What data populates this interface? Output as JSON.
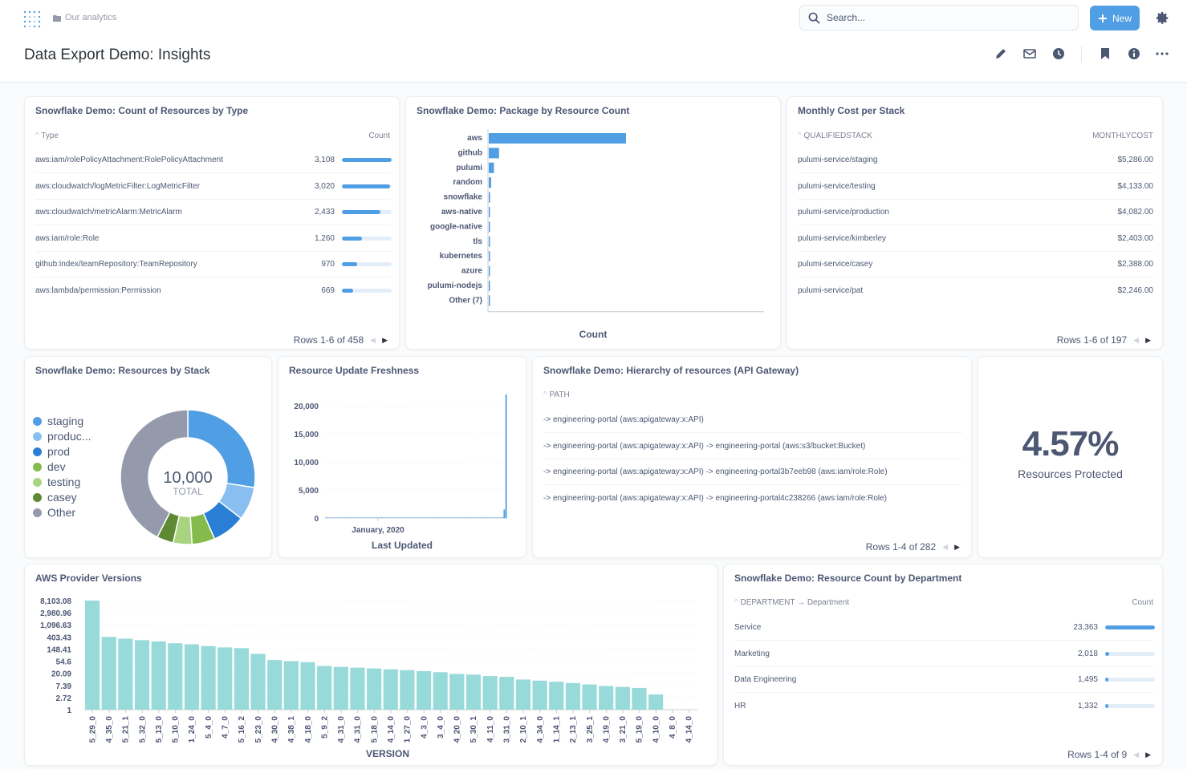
{
  "header": {
    "breadcrumb": "Our analytics",
    "title": "Data Export Demo: Insights",
    "search_placeholder": "Search...",
    "new_label": "New"
  },
  "colors": {
    "accent": "#509ee3",
    "teal": "#98d9d9",
    "gray": "#949aab"
  },
  "cards": {
    "resources_by_type": {
      "title": "Snowflake Demo: Count of Resources by Type",
      "col_type": "Type",
      "col_count": "Count",
      "rows": [
        {
          "label": "aws:iam/rolePolicyAttachment:RolePolicyAttachment",
          "value": "3,108",
          "fraction": 1.0
        },
        {
          "label": "aws:cloudwatch/logMetricFilter:LogMetricFilter",
          "value": "3,020",
          "fraction": 0.97
        },
        {
          "label": "aws:cloudwatch/metricAlarm:MetricAlarm",
          "value": "2,433",
          "fraction": 0.78
        },
        {
          "label": "aws:iam/role:Role",
          "value": "1,260",
          "fraction": 0.41
        },
        {
          "label": "github:index/teamRepository:TeamRepository",
          "value": "970",
          "fraction": 0.31
        },
        {
          "label": "aws:lambda/permission:Permission",
          "value": "669",
          "fraction": 0.22
        }
      ],
      "pager": "Rows 1-6 of 458"
    },
    "package_by_count": {
      "title": "Snowflake Demo: Package by Resource Count",
      "xlabel": "Count"
    },
    "monthly_cost": {
      "title": "Monthly Cost per Stack",
      "col_stack": "QUALIFIEDSTACK",
      "col_cost": "MONTHLYCOST",
      "rows": [
        {
          "label": "pulumi-service/staging",
          "value": "$5,286.00"
        },
        {
          "label": "pulumi-service/testing",
          "value": "$4,133.00"
        },
        {
          "label": "pulumi-service/production",
          "value": "$4,082.00"
        },
        {
          "label": "pulumi-service/kimberley",
          "value": "$2,403.00"
        },
        {
          "label": "pulumi-service/casey",
          "value": "$2,388.00"
        },
        {
          "label": "pulumi-service/pat",
          "value": "$2,246.00"
        }
      ],
      "pager": "Rows 1-6 of 197"
    },
    "resources_by_stack": {
      "title": "Snowflake Demo: Resources by Stack",
      "legend": [
        {
          "label": "staging",
          "color": "#509ee3"
        },
        {
          "label": "produc...",
          "color": "#88bff0"
        },
        {
          "label": "prod",
          "color": "#2a7fd4"
        },
        {
          "label": "dev",
          "color": "#84bb4c"
        },
        {
          "label": "testing",
          "color": "#a8d480"
        },
        {
          "label": "casey",
          "color": "#5f8a33"
        },
        {
          "label": "Other",
          "color": "#949aab"
        }
      ],
      "total": "10,000",
      "total_label": "TOTAL"
    },
    "freshness": {
      "title": "Resource Update Freshness",
      "xlabel": "Last Updated",
      "x_tick": "January, 2020"
    },
    "hierarchy": {
      "title": "Snowflake Demo: Hierarchy of resources (API Gateway)",
      "col_path": "PATH",
      "rows": [
        "-> engineering-portal (aws:apigateway:x:API)",
        "-> engineering-portal (aws:apigateway:x:API) -> engineering-portal (aws:s3/bucket:Bucket)",
        "-> engineering-portal (aws:apigateway:x:API) -> engineering-portal3b7eeb98 (aws:iam/role:Role)",
        "-> engineering-portal (aws:apigateway:x:API) -> engineering-portal4c238266 (aws:iam/role:Role)"
      ],
      "pager": "Rows 1-4 of 282"
    },
    "protected": {
      "value": "4.57%",
      "label": "Resources Protected"
    },
    "aws_versions": {
      "title": "AWS Provider Versions",
      "xlabel": "VERSION"
    },
    "department": {
      "title": "Snowflake Demo: Resource Count by Department",
      "col_dept": "DEPARTMENT → Department",
      "col_count": "Count",
      "rows": [
        {
          "label": "Service",
          "value": "23,363",
          "fraction": 1.0
        },
        {
          "label": "Marketing",
          "value": "2,018",
          "fraction": 0.086
        },
        {
          "label": "Data Engineering",
          "value": "1,495",
          "fraction": 0.064
        },
        {
          "label": "HR",
          "value": "1,332",
          "fraction": 0.057
        }
      ],
      "pager": "Rows 1-4 of 9"
    }
  },
  "chart_data": [
    {
      "type": "bar",
      "orientation": "horizontal",
      "categories": [
        "aws",
        "github",
        "pulumi",
        "random",
        "snowflake",
        "aws-native",
        "google-native",
        "tls",
        "kubernetes",
        "azure",
        "pulumi-nodejs",
        "Other (7)"
      ],
      "values": [
        17400,
        1300,
        650,
        300,
        160,
        100,
        80,
        60,
        40,
        30,
        20,
        10
      ],
      "xlabel": "Count"
    },
    {
      "type": "pie",
      "categories": [
        "staging",
        "produc...",
        "prod",
        "dev",
        "testing",
        "casey",
        "Other"
      ],
      "values": [
        2750,
        800,
        800,
        550,
        450,
        400,
        4250
      ]
    },
    {
      "type": "bar",
      "x_tick": "January, 2020",
      "xlabel": "Last Updated",
      "y_ticks": [
        "0",
        "5,000",
        "10,000",
        "15,000",
        "20,000"
      ],
      "ylim": [
        0,
        23000
      ],
      "values": [
        0,
        0,
        0,
        0,
        0,
        0,
        0,
        80,
        0,
        0,
        0,
        0,
        0,
        0,
        40,
        0,
        0,
        0,
        0,
        0,
        0,
        0,
        0,
        0,
        0,
        0,
        0,
        0,
        0,
        0,
        120,
        0,
        0,
        0,
        0,
        0,
        0,
        0,
        0,
        60,
        0,
        0,
        0,
        0,
        0,
        0,
        0,
        0,
        0,
        0,
        0,
        0,
        0,
        0,
        30,
        0,
        0,
        0,
        0,
        0,
        0,
        0,
        0,
        0,
        0,
        0,
        0,
        0,
        0,
        0,
        0,
        0,
        50,
        0,
        0,
        0,
        0,
        0,
        0,
        0,
        0,
        0,
        0,
        0,
        100,
        0,
        0,
        0,
        0,
        0,
        0,
        0,
        0,
        0,
        40,
        80,
        120,
        1500,
        22000
      ]
    },
    {
      "type": "bar",
      "xlabel": "VERSION",
      "y_ticks": [
        "1",
        "2.72",
        "7.39",
        "20.09",
        "54.6",
        "148.41",
        "403.43",
        "1,096.63",
        "2,980.96",
        "8,103.08"
      ],
      "y_scale": "log",
      "categories": [
        "5_29_0",
        "4_35_0",
        "5_21_1",
        "5_32_0",
        "5_13_0",
        "5_10_0",
        "1_24_0",
        "5_4_0",
        "4_7_0",
        "5_16_2",
        "5_23_0",
        "4_30_0",
        "4_38_1",
        "4_18_0",
        "5_9_2",
        "4_31_0",
        "4_31_0",
        "5_18_0",
        "4_14_0",
        "1_27_0",
        "4_3_0",
        "3_4_0",
        "4_20_0",
        "5_30_1",
        "4_11_0",
        "3_31_0",
        "2_10_1",
        "4_34_0",
        "1_14_1",
        "2_13_1",
        "3_25_1",
        "4_19_0",
        "3_21_0",
        "5_19_0",
        "4_10_0",
        "4_8_0",
        "4_14_0"
      ],
      "values": [
        8103,
        403,
        350,
        310,
        280,
        240,
        220,
        190,
        170,
        160,
        100,
        60,
        55,
        50,
        37,
        34,
        32,
        30,
        28,
        26,
        24,
        22,
        19,
        18,
        16,
        15,
        12,
        11,
        10,
        9,
        8,
        7,
        6.5,
        6,
        3.5,
        1,
        1
      ]
    }
  ]
}
